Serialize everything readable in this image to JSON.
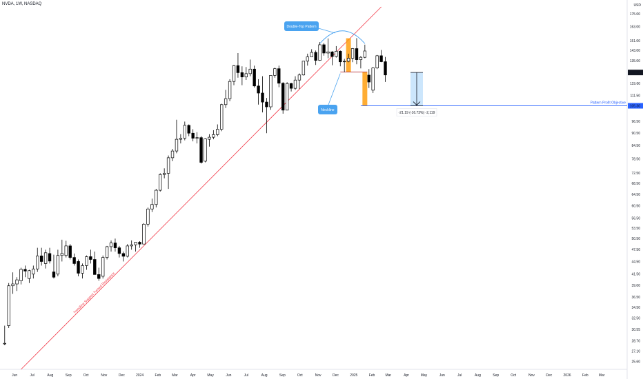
{
  "header": {
    "title": "NVDA, 1W, NASDAQ",
    "currency": "USD"
  },
  "colors": {
    "up": "#ffffff",
    "down": "#000000",
    "outline": "#000000",
    "trendline": "#f23645",
    "annotation": "#4aa3f0",
    "target": "#2962ff",
    "highlight": "#ff9800",
    "measure_fill": "#bbdefb"
  },
  "chart_data": {
    "type": "candlestick",
    "title": "NVDA, 1W, NASDAQ",
    "scale": "log",
    "ylim": [
      24.5,
      182
    ],
    "y_ticks": [
      "24.25",
      "25.60",
      "27.10",
      "28.70",
      "30.55",
      "32.50",
      "34.50",
      "36.50",
      "39.00",
      "41.50",
      "44.50",
      "47.50",
      "50.50",
      "53.50",
      "56.50",
      "60.50",
      "64.50",
      "68.50",
      "72.50",
      "78.50",
      "84.50",
      "90.50",
      "96.50",
      "111.50",
      "119.00",
      "135.00",
      "143.00",
      "151.00",
      "163.00",
      "175.00"
    ],
    "x_labels": [
      {
        "label": "Jun",
        "date": "2023-06-01"
      },
      {
        "label": "Jul",
        "date": "2023-07-01"
      },
      {
        "label": "Aug",
        "date": "2023-08-01"
      },
      {
        "label": "Sep",
        "date": "2023-09-01"
      },
      {
        "label": "Oct",
        "date": "2023-10-01"
      },
      {
        "label": "Nov",
        "date": "2023-11-01"
      },
      {
        "label": "Dec",
        "date": "2023-12-01"
      },
      {
        "label": "2024",
        "date": "2024-01-01"
      },
      {
        "label": "Feb",
        "date": "2024-02-01"
      },
      {
        "label": "Mar",
        "date": "2024-03-01"
      },
      {
        "label": "Apr",
        "date": "2024-04-01"
      },
      {
        "label": "May",
        "date": "2024-05-01"
      },
      {
        "label": "Jun",
        "date": "2024-06-01"
      },
      {
        "label": "Jul",
        "date": "2024-07-01"
      },
      {
        "label": "Aug",
        "date": "2024-08-01"
      },
      {
        "label": "Sep",
        "date": "2024-09-01"
      },
      {
        "label": "Oct",
        "date": "2024-10-01"
      },
      {
        "label": "Nov",
        "date": "2024-11-01"
      },
      {
        "label": "Dec",
        "date": "2024-12-01"
      },
      {
        "label": "2025",
        "date": "2025-01-01"
      },
      {
        "label": "Feb",
        "date": "2025-02-01"
      },
      {
        "label": "Mar",
        "date": "2025-03-01"
      },
      {
        "label": "Apr",
        "date": "2025-04-01"
      },
      {
        "label": "May",
        "date": "2025-05-01"
      },
      {
        "label": "Jun",
        "date": "2025-06-01"
      },
      {
        "label": "Jul",
        "date": "2025-07-01"
      },
      {
        "label": "Aug",
        "date": "2025-08-01"
      },
      {
        "label": "Sep",
        "date": "2025-09-01"
      },
      {
        "label": "Oct",
        "date": "2025-10-01"
      },
      {
        "label": "Nov",
        "date": "2025-11-01"
      },
      {
        "label": "Dec",
        "date": "2025-12-01"
      },
      {
        "label": "2026",
        "date": "2026-01-01"
      },
      {
        "label": "Feb",
        "date": "2026-02-01"
      },
      {
        "label": "Mar",
        "date": "2026-03-01"
      }
    ],
    "candles": [
      {
        "d": "2023-05-15",
        "o": 28.2,
        "h": 31.2,
        "l": 28.0,
        "c": 28.3
      },
      {
        "d": "2023-05-22",
        "o": 31.2,
        "h": 39.5,
        "l": 30.8,
        "c": 38.9
      },
      {
        "d": "2023-05-29",
        "o": 38.9,
        "h": 41.9,
        "l": 37.2,
        "c": 39.3
      },
      {
        "d": "2023-06-05",
        "o": 39.3,
        "h": 40.8,
        "l": 37.8,
        "c": 40.2
      },
      {
        "d": "2023-06-12",
        "o": 40.0,
        "h": 43.0,
        "l": 39.2,
        "c": 42.6
      },
      {
        "d": "2023-06-19",
        "o": 42.6,
        "h": 43.5,
        "l": 40.8,
        "c": 42.2
      },
      {
        "d": "2023-06-26",
        "o": 40.5,
        "h": 42.5,
        "l": 39.5,
        "c": 42.3
      },
      {
        "d": "2023-07-03",
        "o": 41.5,
        "h": 43.5,
        "l": 40.5,
        "c": 42.7
      },
      {
        "d": "2023-07-10",
        "o": 42.7,
        "h": 48.0,
        "l": 42.0,
        "c": 45.9
      },
      {
        "d": "2023-07-17",
        "o": 45.9,
        "h": 48.0,
        "l": 43.5,
        "c": 44.5
      },
      {
        "d": "2023-07-24",
        "o": 44.0,
        "h": 47.5,
        "l": 42.8,
        "c": 46.7
      },
      {
        "d": "2023-07-31",
        "o": 46.5,
        "h": 48.0,
        "l": 44.0,
        "c": 44.6
      },
      {
        "d": "2023-08-07",
        "o": 42.0,
        "h": 46.2,
        "l": 40.5,
        "c": 40.8
      },
      {
        "d": "2023-08-14",
        "o": 41.5,
        "h": 47.5,
        "l": 41.0,
        "c": 46.0
      },
      {
        "d": "2023-08-21",
        "o": 46.0,
        "h": 50.2,
        "l": 44.5,
        "c": 46.5
      },
      {
        "d": "2023-08-28",
        "o": 46.0,
        "h": 49.9,
        "l": 45.5,
        "c": 48.5
      },
      {
        "d": "2023-09-04",
        "o": 48.5,
        "h": 49.0,
        "l": 45.0,
        "c": 45.5
      },
      {
        "d": "2023-09-11",
        "o": 45.5,
        "h": 46.5,
        "l": 43.5,
        "c": 44.0
      },
      {
        "d": "2023-09-18",
        "o": 44.5,
        "h": 45.0,
        "l": 41.0,
        "c": 41.7
      },
      {
        "d": "2023-09-25",
        "o": 41.7,
        "h": 44.0,
        "l": 40.5,
        "c": 43.5
      },
      {
        "d": "2023-10-02",
        "o": 43.5,
        "h": 46.0,
        "l": 42.5,
        "c": 45.7
      },
      {
        "d": "2023-10-09",
        "o": 45.7,
        "h": 47.5,
        "l": 44.0,
        "c": 45.0
      },
      {
        "d": "2023-10-16",
        "o": 45.0,
        "h": 47.0,
        "l": 41.5,
        "c": 41.4
      },
      {
        "d": "2023-10-23",
        "o": 41.4,
        "h": 43.0,
        "l": 40.0,
        "c": 40.5
      },
      {
        "d": "2023-10-30",
        "o": 41.0,
        "h": 46.0,
        "l": 40.5,
        "c": 45.5
      },
      {
        "d": "2023-11-06",
        "o": 45.5,
        "h": 48.5,
        "l": 45.0,
        "c": 48.3
      },
      {
        "d": "2023-11-13",
        "o": 48.3,
        "h": 50.0,
        "l": 47.0,
        "c": 49.3
      },
      {
        "d": "2023-11-20",
        "o": 49.3,
        "h": 50.5,
        "l": 47.0,
        "c": 48.0
      },
      {
        "d": "2023-11-27",
        "o": 48.0,
        "h": 48.5,
        "l": 45.5,
        "c": 46.5
      },
      {
        "d": "2023-12-04",
        "o": 46.5,
        "h": 47.0,
        "l": 44.5,
        "c": 45.8
      },
      {
        "d": "2023-12-11",
        "o": 45.8,
        "h": 49.0,
        "l": 45.5,
        "c": 48.5
      },
      {
        "d": "2023-12-18",
        "o": 48.5,
        "h": 50.0,
        "l": 47.5,
        "c": 48.8
      },
      {
        "d": "2023-12-25",
        "o": 48.8,
        "h": 49.5,
        "l": 47.0,
        "c": 49.5
      },
      {
        "d": "2024-01-01",
        "o": 49.5,
        "h": 49.8,
        "l": 48.0,
        "c": 49.0
      },
      {
        "d": "2024-01-08",
        "o": 49.0,
        "h": 55.0,
        "l": 49.0,
        "c": 54.7
      },
      {
        "d": "2024-01-15",
        "o": 54.7,
        "h": 60.0,
        "l": 54.0,
        "c": 59.5
      },
      {
        "d": "2024-01-22",
        "o": 59.5,
        "h": 63.0,
        "l": 58.5,
        "c": 61.0
      },
      {
        "d": "2024-01-29",
        "o": 61.0,
        "h": 66.5,
        "l": 60.0,
        "c": 66.0
      },
      {
        "d": "2024-02-05",
        "o": 66.0,
        "h": 72.5,
        "l": 65.5,
        "c": 72.0
      },
      {
        "d": "2024-02-12",
        "o": 72.0,
        "h": 74.5,
        "l": 70.5,
        "c": 72.5
      },
      {
        "d": "2024-02-19",
        "o": 72.5,
        "h": 80.0,
        "l": 66.5,
        "c": 79.0
      },
      {
        "d": "2024-02-26",
        "o": 79.0,
        "h": 83.0,
        "l": 77.5,
        "c": 82.0
      },
      {
        "d": "2024-03-04",
        "o": 82.0,
        "h": 97.5,
        "l": 81.0,
        "c": 87.5
      },
      {
        "d": "2024-03-11",
        "o": 87.5,
        "h": 90.0,
        "l": 85.5,
        "c": 88.0
      },
      {
        "d": "2024-03-18",
        "o": 88.0,
        "h": 96.5,
        "l": 87.0,
        "c": 94.5
      },
      {
        "d": "2024-03-25",
        "o": 94.5,
        "h": 95.0,
        "l": 89.0,
        "c": 90.5
      },
      {
        "d": "2024-04-01",
        "o": 90.5,
        "h": 92.5,
        "l": 86.5,
        "c": 88.0
      },
      {
        "d": "2024-04-08",
        "o": 88.0,
        "h": 91.0,
        "l": 85.5,
        "c": 88.3
      },
      {
        "d": "2024-04-15",
        "o": 88.3,
        "h": 89.0,
        "l": 76.5,
        "c": 77.0
      },
      {
        "d": "2024-04-22",
        "o": 77.5,
        "h": 88.0,
        "l": 77.0,
        "c": 87.7
      },
      {
        "d": "2024-04-29",
        "o": 87.5,
        "h": 90.0,
        "l": 84.0,
        "c": 88.5
      },
      {
        "d": "2024-05-06",
        "o": 88.5,
        "h": 92.0,
        "l": 87.5,
        "c": 89.8
      },
      {
        "d": "2024-05-13",
        "o": 89.8,
        "h": 95.0,
        "l": 89.0,
        "c": 92.5
      },
      {
        "d": "2024-05-20",
        "o": 92.5,
        "h": 106.5,
        "l": 91.5,
        "c": 106.0
      },
      {
        "d": "2024-05-27",
        "o": 106.0,
        "h": 115.0,
        "l": 104.0,
        "c": 109.5
      },
      {
        "d": "2024-06-03",
        "o": 109.5,
        "h": 122.0,
        "l": 108.0,
        "c": 120.5
      },
      {
        "d": "2024-06-10",
        "o": 120.5,
        "h": 132.0,
        "l": 118.0,
        "c": 131.5
      },
      {
        "d": "2024-06-17",
        "o": 131.5,
        "h": 141.0,
        "l": 123.0,
        "c": 126.5
      },
      {
        "d": "2024-06-24",
        "o": 126.5,
        "h": 131.0,
        "l": 118.0,
        "c": 123.5
      },
      {
        "d": "2024-07-01",
        "o": 123.5,
        "h": 130.5,
        "l": 121.5,
        "c": 125.8
      },
      {
        "d": "2024-07-08",
        "o": 125.8,
        "h": 136.0,
        "l": 124.0,
        "c": 129.0
      },
      {
        "d": "2024-07-15",
        "o": 129.0,
        "h": 131.5,
        "l": 116.5,
        "c": 117.5
      },
      {
        "d": "2024-07-22",
        "o": 117.5,
        "h": 122.0,
        "l": 106.0,
        "c": 113.0
      },
      {
        "d": "2024-07-29",
        "o": 113.0,
        "h": 124.0,
        "l": 101.5,
        "c": 107.5
      },
      {
        "d": "2024-08-05",
        "o": 107.5,
        "h": 110.0,
        "l": 90.5,
        "c": 104.7
      },
      {
        "d": "2024-08-12",
        "o": 104.7,
        "h": 124.0,
        "l": 103.0,
        "c": 124.6
      },
      {
        "d": "2024-08-19",
        "o": 124.6,
        "h": 130.0,
        "l": 123.0,
        "c": 129.3
      },
      {
        "d": "2024-08-26",
        "o": 129.3,
        "h": 131.5,
        "l": 116.7,
        "c": 119.3
      },
      {
        "d": "2024-09-02",
        "o": 119.3,
        "h": 120.0,
        "l": 100.8,
        "c": 102.8
      },
      {
        "d": "2024-09-09",
        "o": 102.8,
        "h": 120.0,
        "l": 103.5,
        "c": 119.1
      },
      {
        "d": "2024-09-16",
        "o": 119.1,
        "h": 119.6,
        "l": 114.0,
        "c": 116.0
      },
      {
        "d": "2024-09-23",
        "o": 116.0,
        "h": 124.0,
        "l": 115.0,
        "c": 121.4
      },
      {
        "d": "2024-09-30",
        "o": 121.4,
        "h": 126.0,
        "l": 115.5,
        "c": 124.9
      },
      {
        "d": "2024-10-07",
        "o": 124.9,
        "h": 135.0,
        "l": 124.5,
        "c": 134.8
      },
      {
        "d": "2024-10-14",
        "o": 134.8,
        "h": 140.5,
        "l": 131.5,
        "c": 138.0
      },
      {
        "d": "2024-10-21",
        "o": 138.0,
        "h": 144.0,
        "l": 138.0,
        "c": 141.5
      },
      {
        "d": "2024-10-28",
        "o": 141.5,
        "h": 143.0,
        "l": 132.0,
        "c": 135.4
      },
      {
        "d": "2024-11-04",
        "o": 135.4,
        "h": 149.8,
        "l": 135.0,
        "c": 147.6
      },
      {
        "d": "2024-11-11",
        "o": 147.6,
        "h": 149.0,
        "l": 139.0,
        "c": 141.0
      },
      {
        "d": "2024-11-18",
        "o": 141.0,
        "h": 152.9,
        "l": 137.0,
        "c": 141.9
      },
      {
        "d": "2024-11-25",
        "o": 141.9,
        "h": 142.5,
        "l": 131.8,
        "c": 138.3
      },
      {
        "d": "2024-12-02",
        "o": 138.3,
        "h": 146.5,
        "l": 137.5,
        "c": 142.4
      },
      {
        "d": "2024-12-09",
        "o": 142.4,
        "h": 143.0,
        "l": 131.0,
        "c": 134.3
      },
      {
        "d": "2024-12-16",
        "o": 134.3,
        "h": 136.5,
        "l": 126.9,
        "c": 134.7
      },
      {
        "d": "2024-12-23",
        "o": 134.7,
        "h": 140.5,
        "l": 134.0,
        "c": 137.0
      },
      {
        "d": "2024-12-30",
        "o": 137.0,
        "h": 144.9,
        "l": 134.0,
        "c": 144.5
      },
      {
        "d": "2025-01-06",
        "o": 144.5,
        "h": 153.1,
        "l": 132.5,
        "c": 135.9
      },
      {
        "d": "2025-01-13",
        "o": 135.9,
        "h": 138.7,
        "l": 129.5,
        "c": 137.7
      },
      {
        "d": "2025-01-20",
        "o": 137.7,
        "h": 147.7,
        "l": 137.0,
        "c": 142.6
      },
      {
        "d": "2025-01-27",
        "o": 124.8,
        "h": 129.0,
        "l": 116.2,
        "c": 120.1
      },
      {
        "d": "2025-02-03",
        "o": 114.8,
        "h": 130.4,
        "l": 113.0,
        "c": 129.8
      },
      {
        "d": "2025-02-10",
        "o": 129.8,
        "h": 139.5,
        "l": 129.0,
        "c": 138.9
      },
      {
        "d": "2025-02-17",
        "o": 138.9,
        "h": 143.4,
        "l": 134.0,
        "c": 134.4
      },
      {
        "d": "2025-02-24",
        "o": 134.4,
        "h": 138.0,
        "l": 120.2,
        "c": 124.9
      }
    ],
    "current_price": "126.63",
    "target_price": "105.30",
    "measure_text": "-21.19 (-16.73%) -2,119",
    "annotations": {
      "pattern": "Double-Top Pattern",
      "neckline": "Neckline",
      "trendline": "Trendline Support Turned Resistance",
      "objective": "Pattern Profit Objective"
    },
    "trendline": {
      "from": {
        "d": "2023-06-12",
        "v": 24.5
      },
      "to": {
        "d": "2025-02-17",
        "v": 182.0
      }
    },
    "neckline_price": 126.9,
    "legend": "none",
    "grid": false
  }
}
